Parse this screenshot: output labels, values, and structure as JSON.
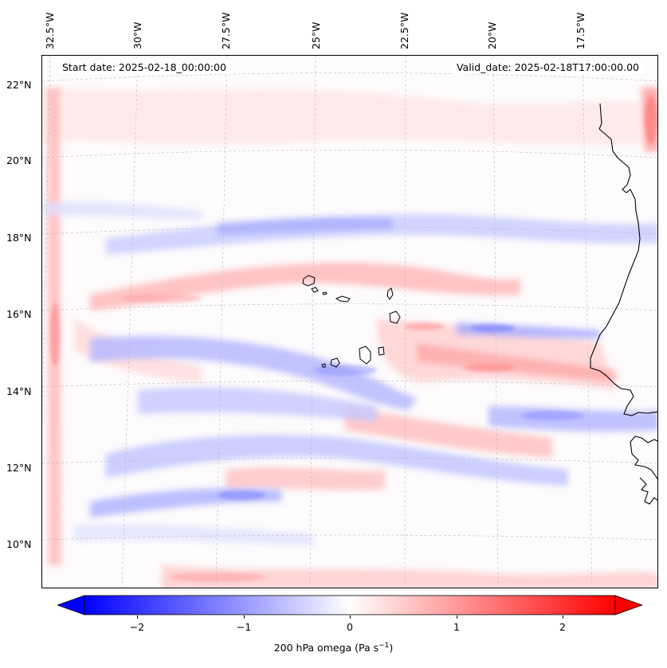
{
  "map": {
    "title_left": "Start date: 2025-02-18_00:00:00",
    "title_right": "Valid_date: 2025-02-18T17:00:00.00",
    "lon_labels": [
      "32.5°W",
      "30°W",
      "27.5°W",
      "25°W",
      "22.5°W",
      "20°W",
      "17.5°W"
    ],
    "lat_labels": [
      "22°N",
      "20°N",
      "18°N",
      "16°N",
      "14°N",
      "12°N",
      "10°N"
    ],
    "features": [
      "coastline-west-africa",
      "cape-verde-islands"
    ],
    "colors": {
      "negative": "#0000ff",
      "positive": "#ff0000",
      "neutral": "#ffffff"
    }
  },
  "colorbar": {
    "ticks": [
      "−2",
      "−1",
      "0",
      "1",
      "2"
    ],
    "label_main": "200 hPa omega (Pa s",
    "label_sup": "−1",
    "label_end": ")",
    "min": -2.7,
    "max": 2.7
  }
}
